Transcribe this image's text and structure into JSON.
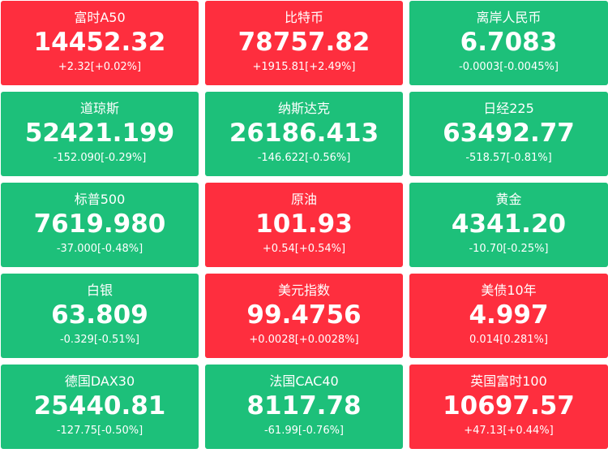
{
  "tiles": [
    {
      "name": "富时A50",
      "price": "14452.32",
      "change": "+2.32[+0.02%]",
      "color": "#fe2e3e"
    },
    {
      "name": "比特币",
      "price": "78757.82",
      "change": "+1915.81[+2.49%]",
      "color": "#fe2e3e"
    },
    {
      "name": "离岸人民币",
      "price": "6.7083",
      "change": "-0.0003[-0.0045%]",
      "color": "#1dc07a"
    },
    {
      "name": "道琼斯",
      "price": "52421.199",
      "change": "-152.090[-0.29%]",
      "color": "#1dc07a"
    },
    {
      "name": "纳斯达克",
      "price": "26186.413",
      "change": "-146.622[-0.56%]",
      "color": "#1dc07a"
    },
    {
      "name": "日经225",
      "price": "63492.77",
      "change": "-518.57[-0.81%]",
      "color": "#1dc07a"
    },
    {
      "name": "标普500",
      "price": "7619.980",
      "change": "-37.000[-0.48%]",
      "color": "#1dc07a"
    },
    {
      "name": "原油",
      "price": "101.93",
      "change": "+0.54[+0.54%]",
      "color": "#fe2e3e"
    },
    {
      "name": "黄金",
      "price": "4341.20",
      "change": "-10.70[-0.25%]",
      "color": "#1dc07a"
    },
    {
      "name": "白银",
      "price": "63.809",
      "change": "-0.329[-0.51%]",
      "color": "#1dc07a"
    },
    {
      "name": "美元指数",
      "price": "99.4756",
      "change": "+0.0028[+0.0028%]",
      "color": "#fe2e3e"
    },
    {
      "name": "美债10年",
      "price": "4.997",
      "change": "0.014[0.281%]",
      "color": "#fe2e3e"
    },
    {
      "name": "德国DAX30",
      "price": "25440.81",
      "change": "-127.75[-0.50%]",
      "color": "#1dc07a"
    },
    {
      "name": "法国CAC40",
      "price": "8117.78",
      "change": "-61.99[-0.76%]",
      "color": "#1dc07a"
    },
    {
      "name": "英国富时100",
      "price": "10697.57",
      "change": "+47.13[+0.44%]",
      "color": "#fe2e3e"
    }
  ]
}
